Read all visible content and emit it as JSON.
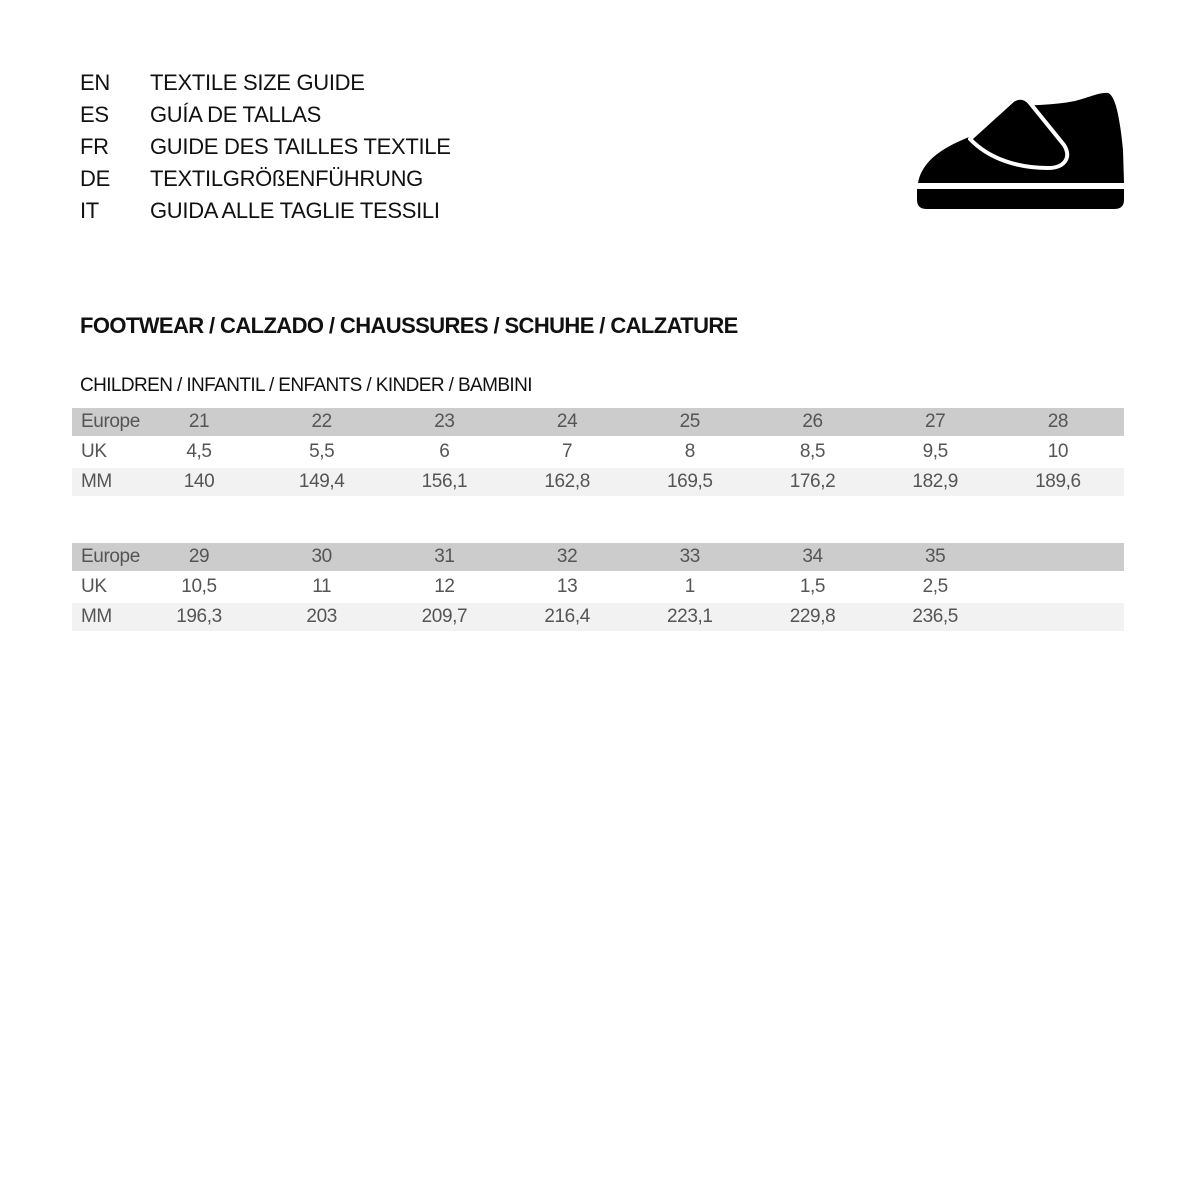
{
  "languages": [
    {
      "code": "EN",
      "text": "TEXTILE SIZE GUIDE"
    },
    {
      "code": "ES",
      "text": "GUÍA DE TALLAS"
    },
    {
      "code": "FR",
      "text": "GUIDE DES TAILLES TEXTILE"
    },
    {
      "code": "DE",
      "text": "TEXTILGRÖßENFÜHRUNG"
    },
    {
      "code": "IT",
      "text": "GUIDA ALLE TAGLIE TESSILI"
    }
  ],
  "icon": "shoe-icon",
  "title": "FOOTWEAR / CALZADO / CHAUSSURES / SCHUHE / CALZATURE",
  "subtitle": "CHILDREN / INFANTIL / ENFANTS / KINDER / BAMBINI",
  "tables": [
    {
      "rows": [
        {
          "label": "Europe",
          "values": [
            "21",
            "22",
            "23",
            "24",
            "25",
            "26",
            "27",
            "28"
          ]
        },
        {
          "label": "UK",
          "values": [
            "4,5",
            "5,5",
            "6",
            "7",
            "8",
            "8,5",
            "9,5",
            "10"
          ]
        },
        {
          "label": "MM",
          "values": [
            "140",
            "149,4",
            "156,1",
            "162,8",
            "169,5",
            "176,2",
            "182,9",
            "189,6"
          ]
        }
      ]
    },
    {
      "rows": [
        {
          "label": "Europe",
          "values": [
            "29",
            "30",
            "31",
            "32",
            "33",
            "34",
            "35"
          ]
        },
        {
          "label": "UK",
          "values": [
            "10,5",
            "11",
            "12",
            "13",
            "1",
            "1,5",
            "2,5"
          ]
        },
        {
          "label": "MM",
          "values": [
            "196,3",
            "203",
            "209,7",
            "216,4",
            "223,1",
            "229,8",
            "236,5"
          ]
        }
      ]
    }
  ]
}
